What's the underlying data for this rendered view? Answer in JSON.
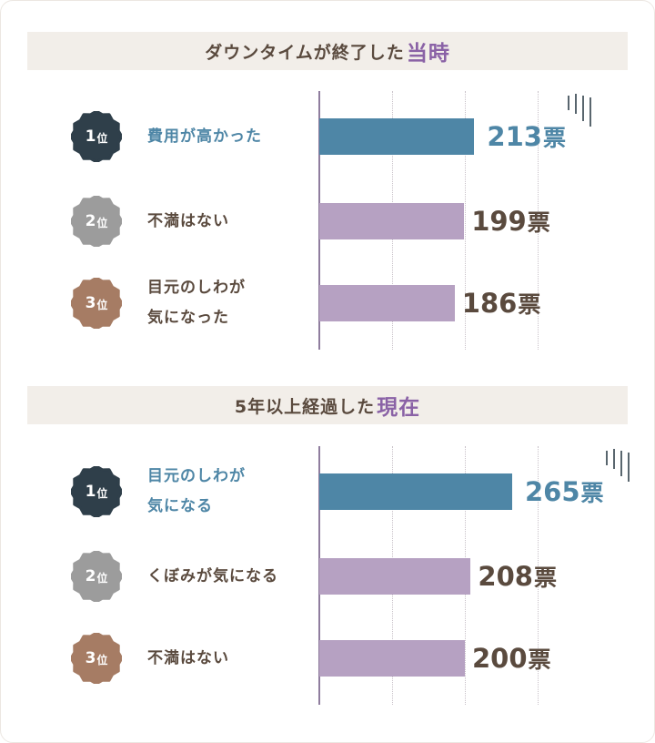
{
  "chart_data": [
    {
      "type": "bar",
      "title_main": "ダウンタイムが終了した",
      "title_highlight": "当時",
      "unit": "票",
      "categories": [
        "費用が高かった",
        "不満はない",
        "目元のしわが気になった"
      ],
      "ranks": [
        "1",
        "2",
        "3"
      ],
      "rank_suffix": "位",
      "label_lines": [
        [
          "費用が高かった"
        ],
        [
          "不満はない"
        ],
        [
          "目元のしわが",
          "気になった"
        ]
      ],
      "values": [
        213,
        199,
        186
      ],
      "xlim": [
        0,
        300
      ],
      "grid": true
    },
    {
      "type": "bar",
      "title_main": "5年以上経過した",
      "title_highlight": "現在",
      "unit": "票",
      "categories": [
        "目元のしわが気になる",
        "くぼみが気になる",
        "不満はない"
      ],
      "ranks": [
        "1",
        "2",
        "3"
      ],
      "rank_suffix": "位",
      "label_lines": [
        [
          "目元のしわが",
          "気になる"
        ],
        [
          "くぼみが気になる"
        ],
        [
          "不満はない"
        ]
      ],
      "values": [
        265,
        208,
        200
      ],
      "xlim": [
        0,
        300
      ],
      "grid": true
    }
  ],
  "colors": {
    "rank1": "#2f3f4a",
    "rank2": "#9c9c9c",
    "rank3": "#a67c64",
    "bar_top": "#4e86a6",
    "bar_other": "#b6a1c2",
    "text_top": "#4e86a6",
    "text_other": "#5a4a3e",
    "highlight": "#8a62a6"
  }
}
